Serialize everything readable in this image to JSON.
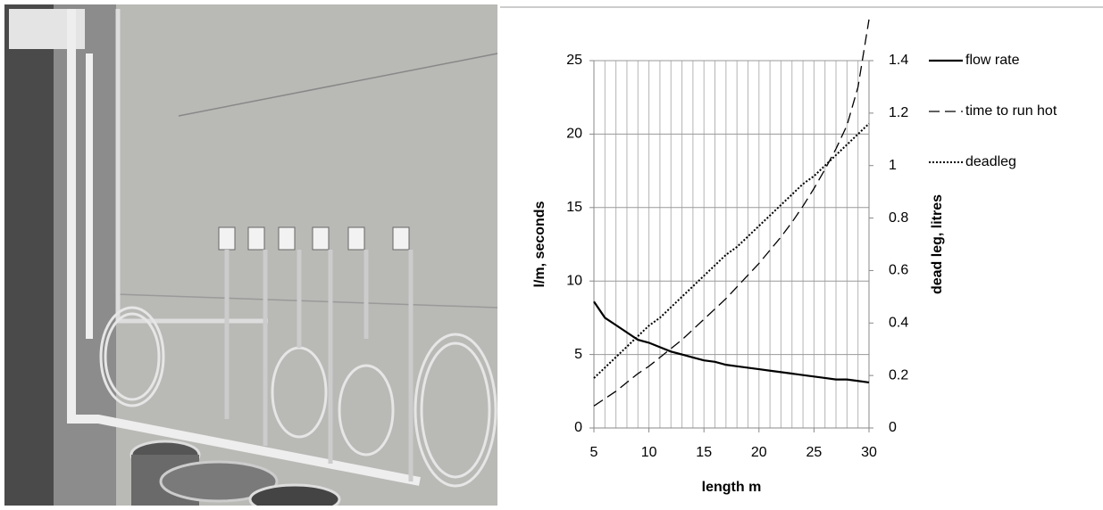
{
  "chart_data": {
    "type": "line",
    "x": [
      5,
      6,
      7,
      8,
      9,
      10,
      11,
      12,
      13,
      14,
      15,
      16,
      17,
      18,
      19,
      20,
      21,
      22,
      23,
      24,
      25,
      26,
      27,
      28,
      29,
      30
    ],
    "xlim": [
      5,
      30
    ],
    "xticks": [
      5,
      10,
      15,
      20,
      25,
      30
    ],
    "ylim": [
      0,
      25
    ],
    "yticks": [
      0,
      5,
      10,
      15,
      20,
      25
    ],
    "y2lim": [
      0,
      1.4
    ],
    "y2ticks": [
      0,
      0.2,
      0.4,
      0.6,
      0.8,
      1,
      1.2,
      1.4
    ],
    "xlabel": "length m",
    "ylabel": "l/m, seconds",
    "y2label": "dead leg, litres",
    "grid": true,
    "series": [
      {
        "name": "flow rate",
        "color": "#000000",
        "dash": "solid",
        "values": [
          8.6,
          7.5,
          7.0,
          6.5,
          6.0,
          5.8,
          5.5,
          5.2,
          5.0,
          4.8,
          4.6,
          4.5,
          4.3,
          4.2,
          4.1,
          4.0,
          3.9,
          3.8,
          3.7,
          3.6,
          3.5,
          3.4,
          3.3,
          3.3,
          3.2,
          3.1
        ]
      },
      {
        "name": "time to run hot",
        "color": "#000000",
        "dash": "dashed",
        "values": [
          1.5,
          2.0,
          2.5,
          3.1,
          3.7,
          4.2,
          4.8,
          5.4,
          6.0,
          6.7,
          7.4,
          8.1,
          8.8,
          9.6,
          10.4,
          11.2,
          12.1,
          13.0,
          14.0,
          15.1,
          16.3,
          17.6,
          19.0,
          20.6,
          23.2,
          27.8
        ]
      },
      {
        "name": "deadleg",
        "color": "#000000",
        "dash": "dotted",
        "axis": "y2",
        "values": [
          0.19,
          0.23,
          0.27,
          0.31,
          0.35,
          0.39,
          0.42,
          0.46,
          0.5,
          0.54,
          0.58,
          0.62,
          0.66,
          0.69,
          0.73,
          0.77,
          0.81,
          0.85,
          0.89,
          0.93,
          0.96,
          1.0,
          1.04,
          1.08,
          1.12,
          1.16
        ]
      }
    ]
  }
}
